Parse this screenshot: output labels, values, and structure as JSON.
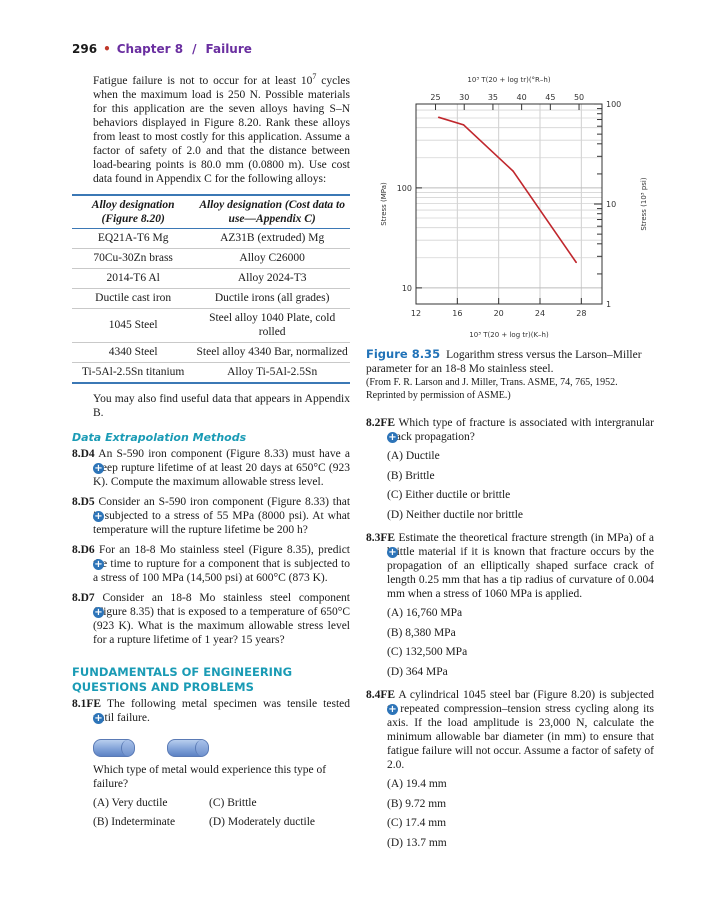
{
  "header": {
    "page_number": "296",
    "separator": "•",
    "chapter": "Chapter 8",
    "slash": "/",
    "title": "Failure"
  },
  "intro": {
    "text_before": "Fatigue failure is not to occur for at least 10",
    "sup": "7",
    "text_after": " cycles when the maximum load is 250 N. Possible materials for this application are the seven alloys having S–N behaviors displayed in Figure 8.20. Rank these alloys from least to most costly for this application. Assume a factor of safety of 2.0 and that the distance between load-bearing points is 80.0 mm (0.0800 m). Use cost data found in Appendix C for the following alloys:"
  },
  "table": {
    "headers": [
      "Alloy designation (Figure 8.20)",
      "Alloy designation (Cost data to use—Appendix C)"
    ],
    "rows": [
      [
        "EQ21A-T6 Mg",
        "AZ31B (extruded) Mg"
      ],
      [
        "70Cu-30Zn brass",
        "Alloy C26000"
      ],
      [
        "2014-T6 Al",
        "Alloy 2024-T3"
      ],
      [
        "Ductile cast iron",
        "Ductile irons (all grades)"
      ],
      [
        "1045 Steel",
        "Steel alloy 1040 Plate, cold rolled"
      ],
      [
        "4340 Steel",
        "Steel alloy 4340 Bar, normalized"
      ],
      [
        "Ti-5Al-2.5Sn titanium",
        "Alloy Ti-5Al-2.5Sn"
      ]
    ]
  },
  "after_table": "You may also find useful data that appears in Appendix B.",
  "section1": "Data Extrapolation Methods",
  "section2_line1": "FUNDAMENTALS OF ENGINEERING",
  "section2_line2": "QUESTIONS AND PROBLEMS",
  "plus_icon": "+",
  "problems": [
    {
      "num": "8.D4",
      "text": "An S-590 iron component (Figure 8.33) must have a creep rupture lifetime of at least 20 days at 650°C (923 K). Compute the maximum allowable stress level."
    },
    {
      "num": "8.D5",
      "text": "Consider an S-590 iron component (Figure 8.33) that is subjected to a stress of 55 MPa (8000 psi). At what temperature will the rupture lifetime be 200 h?"
    },
    {
      "num": "8.D6",
      "text": "For an 18-8 Mo stainless steel (Figure 8.35), predict the time to rupture for a component that is subjected to a stress of 100 MPa (14,500 psi) at 600°C (873 K)."
    },
    {
      "num": "8.D7",
      "text": "Consider an 18-8 Mo stainless steel component (Figure 8.35) that is exposed to a temperature of 650°C (923 K). What is the maximum allowable stress level for a rupture lifetime of 1 year? 15 years?"
    },
    {
      "num": "8.1FE",
      "text": "The following metal specimen was tensile tested until failure."
    },
    {
      "num": "8.2FE",
      "text": "Which type of fracture is associated with intergranular crack propagation?"
    },
    {
      "num": "8.3FE",
      "text": "Estimate the theoretical fracture strength (in MPa) of a brittle material if it is known that fracture occurs by the propagation of an elliptically shaped surface crack of length 0.25 mm that has a tip radius of curvature of 0.004 mm when a stress of 1060 MPa is applied."
    },
    {
      "num": "8.4FE",
      "text": "A cylindrical 1045 steel bar (Figure 8.20) is subjected to repeated compression–tension stress cycling along its axis. If the load amplitude is 23,000 N, calculate the minimum allowable bar diameter (in mm) to ensure that fatigue failure will not occur. Assume a factor of safety of 2.0."
    }
  ],
  "q1_followup": "Which type of metal would experience this type of failure?",
  "options": {
    "p1": [
      "(A)  Very ductile",
      "(C)  Brittle",
      "(B)  Indeterminate",
      "(D)  Moderately ductile"
    ],
    "p2": [
      "(A)  Ductile",
      "(B)  Brittle",
      "(C)  Either ductile or brittle",
      "(D)  Neither ductile nor brittle"
    ],
    "p3": [
      "(A)  16,760 MPa",
      "(B)  8,380 MPa",
      "(C)  132,500 MPa",
      "(D)  364 MPa"
    ],
    "p4": [
      "(A)  19.4 mm",
      "(B)  9.72 mm",
      "(C)  17.4 mm",
      "(D)  13.7 mm"
    ]
  },
  "caption": {
    "label": "Figure 8.35",
    "text": "Logarithm stress versus the Larson–Miller parameter for an 18-8 Mo stainless steel.",
    "source": "(From F. R. Larson and J. Miller, Trans. ASME, 74, 765, 1952. Reprinted by permission of ASME.)"
  },
  "chart_data": {
    "type": "line",
    "xlabel": "10³ T(20 + log tr)(K–h)",
    "x2label": "10³ T(20 + log tr)(°R–h)",
    "ylabel": "Stress (MPa)",
    "y2label": "Stress (10³ psi)",
    "xlim": [
      12,
      30
    ],
    "xticks": [
      12,
      16,
      20,
      24,
      28
    ],
    "x2ticks": [
      25,
      30,
      35,
      40,
      45,
      50
    ],
    "ylim": [
      6.9,
      690
    ],
    "yscale": "log",
    "yticks": [
      10,
      100
    ],
    "y2ticks": [
      1,
      10,
      100
    ],
    "grid": true,
    "line_color": "#c0272d",
    "series": [
      {
        "x": [
          14.2,
          16.6,
          21.4,
          27.5
        ],
        "y": [
          508,
          427,
          147,
          18
        ]
      }
    ]
  }
}
